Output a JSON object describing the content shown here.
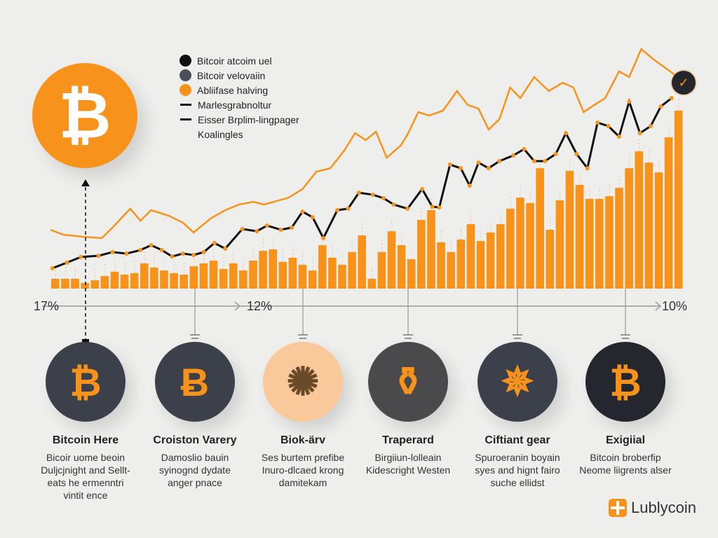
{
  "legend": [
    {
      "label": "Bitcoir atcoim uel",
      "kind": "dot",
      "color": "#111111"
    },
    {
      "label": "Bitcoir velovaiin",
      "kind": "dot",
      "color": "#4a4f58"
    },
    {
      "label": "Abliifase halving",
      "kind": "dot",
      "color": "#f7931a"
    },
    {
      "label": "Marlesgrabnoltur",
      "kind": "dash"
    },
    {
      "label": "Eisser Brplim-lingpager",
      "kind": "dash"
    },
    {
      "label": "Koalingles",
      "kind": "none"
    }
  ],
  "hero_icon": "bitcoin-icon",
  "hero_symbol": "₿",
  "axis_labels": {
    "left": "17%",
    "middle": "12%",
    "right": "10%"
  },
  "colors": {
    "orange": "#f7931a",
    "dark": "#3b404a",
    "black": "#111111"
  },
  "items": [
    {
      "title": "Bitcoin Here",
      "desc": "Bicoir uome beoin\nDuljcjnight and Sellt-\neats he ermenntri\nvintit ence",
      "icon": "bitcoin-icon",
      "symbol": "₿"
    },
    {
      "title": "Croiston Varery",
      "desc": "Damoslio bauin\nsyinognd dydate\nanger pnace",
      "icon": "bitcoin-outline-icon",
      "symbol": "Ƀ"
    },
    {
      "title": "Biok-ärv",
      "desc": "Ses burtem prefibe\nInuro-dlcaed krong\ndamitekam",
      "icon": "rock-icon",
      "symbol": "✺"
    },
    {
      "title": "Traperard",
      "desc": "Birgiiun-lolleain\nKidescright Westen",
      "icon": "bottle-icon",
      "symbol": "⚱"
    },
    {
      "title": "Ciftiant gear",
      "desc": "Spuroeranin boyain\nsyes and hignt fairo\nsuche ellidst",
      "icon": "network-sphere-icon",
      "symbol": "✵"
    },
    {
      "title": "Exigiial",
      "desc": "Bitcoin broberfip\nNeome liigrents alser",
      "icon": "bitcoin-icon",
      "symbol": "₿"
    }
  ],
  "logo": {
    "text": "Lublycoin"
  },
  "chart_data": {
    "type": "bar",
    "title": "",
    "xlabel": "",
    "ylabel": "",
    "xlim": [
      0,
      100
    ],
    "ylim": [
      0,
      100
    ],
    "grid": false,
    "legend_position": "top-left",
    "bars": [
      4,
      4,
      4,
      2.3,
      3.4,
      5.1,
      6.9,
      5.7,
      6.3,
      10.3,
      8.6,
      7.4,
      6.3,
      5.7,
      9.1,
      10.3,
      11.4,
      8,
      10.3,
      7.4,
      11.4,
      15.4,
      16,
      10.9,
      12.6,
      9.7,
      7.4,
      17.7,
      12.6,
      9.7,
      14.9,
      21.7,
      4,
      14.9,
      23.4,
      17.7,
      12,
      28,
      32,
      18.9,
      14.9,
      20,
      26.3,
      19.4,
      22.9,
      26.3,
      32.6,
      37.1,
      34.9,
      49.1,
      24,
      36,
      48,
      42.3,
      36.6,
      36.6,
      37.7,
      41.1,
      49.1,
      56,
      51.4,
      47.4,
      61.7,
      72.6
    ],
    "series": [
      {
        "name": "black",
        "x": [
          0.3,
          2.6,
          4.8,
          7.6,
          9.8,
          12,
          14.2,
          15.9,
          17.6,
          19.2,
          20.9,
          22.6,
          24.2,
          25.9,
          27.6,
          30.3,
          32.6,
          34.2,
          36.4,
          38.1,
          39.8,
          41.4,
          43.1,
          45.3,
          47,
          48.7,
          50.9,
          52.6,
          54.2,
          56.4,
          58.7,
          60.3,
          61.4,
          63.1,
          64.8,
          66.2,
          67.6,
          69.2,
          70.9,
          73.1,
          74.8,
          76.4,
          78.1,
          79.8,
          81.4,
          83.1,
          84.8,
          86.4,
          88.1,
          89.8,
          91.4,
          93.1,
          94.8,
          96.4,
          98.1
        ],
        "y": [
          8.3,
          10.6,
          12.9,
          13.4,
          14.9,
          14.3,
          15.7,
          17.7,
          15.7,
          13.1,
          14.3,
          13.7,
          14.9,
          18.6,
          16.3,
          24.3,
          23.4,
          25.7,
          24,
          24.9,
          31.4,
          29.1,
          20.6,
          32,
          32.6,
          39.1,
          38.3,
          36.9,
          34.3,
          32.6,
          40.6,
          33.4,
          33.1,
          50.6,
          49.1,
          42,
          51.4,
          49.1,
          52,
          54.3,
          56.9,
          52,
          52,
          54.9,
          63.4,
          54.9,
          49.1,
          67.7,
          66.3,
          62,
          76.3,
          63.4,
          66.3,
          74.3,
          77.7
        ]
      },
      {
        "name": "orange",
        "x": [
          0,
          2,
          5.3,
          8.1,
          9.8,
          12.6,
          14.2,
          15.9,
          18.7,
          20.9,
          22.6,
          25.3,
          27.6,
          29.8,
          32,
          33.7,
          35.3,
          37.6,
          39.8,
          42,
          44.2,
          46.4,
          48.1,
          49.8,
          51.4,
          53.1,
          55.3,
          56.4,
          58.1,
          59.8,
          62,
          64.2,
          65.9,
          67.6,
          69.2,
          70.9,
          72.6,
          74.2,
          76.4,
          78.7,
          80.9,
          82.6,
          84.2,
          85.9,
          87.6,
          89.8,
          91.4,
          93.3,
          95.3,
          97.6,
          99.8
        ],
        "y": [
          24,
          22,
          21.1,
          20.6,
          24.9,
          32.6,
          27.7,
          32,
          29.7,
          26.9,
          22.9,
          28.6,
          32,
          34.3,
          35.4,
          34.3,
          35.4,
          37.1,
          40.6,
          47.7,
          49.1,
          56.3,
          63.4,
          60.6,
          64,
          53.4,
          58.3,
          62.9,
          72,
          70.6,
          72.6,
          80.6,
          74.9,
          73.4,
          64.9,
          69.1,
          82,
          77.7,
          86.3,
          80.6,
          84,
          82,
          72,
          74.9,
          77.7,
          88.6,
          86.3,
          97.7,
          93.4,
          89.1,
          84.9
        ]
      }
    ]
  }
}
